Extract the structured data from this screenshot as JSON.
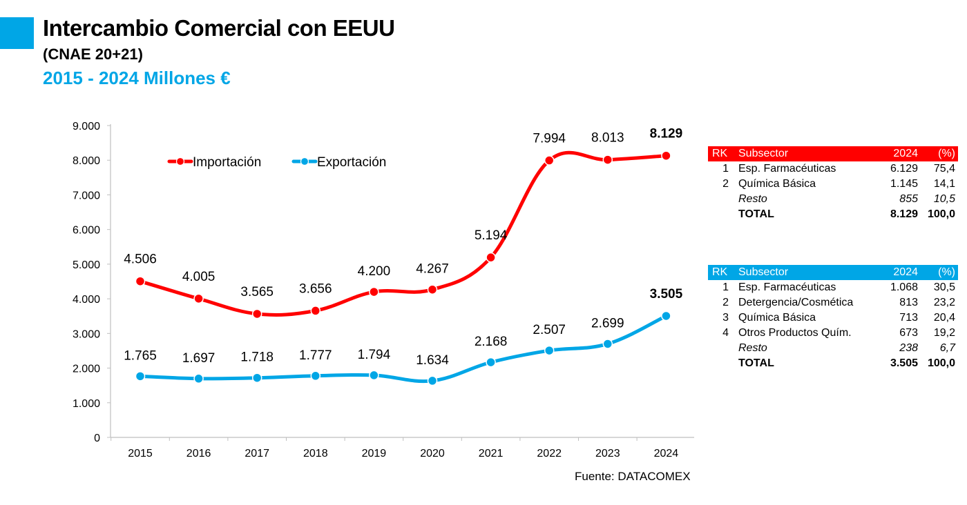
{
  "header": {
    "title": "Intercambio Comercial con EEUU",
    "subtitle": "(CNAE 20+21)",
    "period": "2015  - 2024 Millones €"
  },
  "source": "Fuente: DATACOMEX",
  "chart_data": {
    "type": "line",
    "categories": [
      "2015",
      "2016",
      "2017",
      "2018",
      "2019",
      "2020",
      "2021",
      "2022",
      "2023",
      "2024"
    ],
    "ylim": [
      0,
      9000
    ],
    "yticks": [
      0,
      1000,
      2000,
      3000,
      4000,
      5000,
      6000,
      7000,
      8000,
      9000
    ],
    "ytick_labels": [
      "0",
      "1.000",
      "2.000",
      "3.000",
      "4.000",
      "5.000",
      "6.000",
      "7.000",
      "8.000",
      "9.000"
    ],
    "legend_position": "top-left",
    "grid": false,
    "series": [
      {
        "name": "Importación",
        "color": "#ff0000",
        "values": [
          4506,
          4005,
          3565,
          3656,
          4200,
          4267,
          5194,
          7994,
          8013,
          8129
        ],
        "labels": [
          "4.506",
          "4.005",
          "3.565",
          "3.656",
          "4.200",
          "4.267",
          "5.194",
          "7.994",
          "8.013",
          "8.129"
        ]
      },
      {
        "name": "Exportación",
        "color": "#00a6e6",
        "values": [
          1765,
          1697,
          1718,
          1777,
          1794,
          1634,
          2168,
          2507,
          2699,
          3505
        ],
        "labels": [
          "1.765",
          "1.697",
          "1.718",
          "1.777",
          "1.794",
          "1.634",
          "2.168",
          "2.507",
          "2.699",
          "3.505"
        ]
      }
    ]
  },
  "tables": [
    {
      "color": "#ff0000",
      "headers": [
        "RK",
        "Subsector",
        "2024",
        "(%)"
      ],
      "rows": [
        {
          "rk": "1",
          "name": "Esp. Farmacéuticas",
          "value": "6.129",
          "pct": "75,4",
          "style": ""
        },
        {
          "rk": "2",
          "name": "Química Básica",
          "value": "1.145",
          "pct": "14,1",
          "style": ""
        },
        {
          "rk": "",
          "name": "Resto",
          "value": "855",
          "pct": "10,5",
          "style": "italic"
        },
        {
          "rk": "",
          "name": "TOTAL",
          "value": "8.129",
          "pct": "100,0",
          "style": "bold"
        }
      ]
    },
    {
      "color": "#00a6e6",
      "headers": [
        "RK",
        "Subsector",
        "2024",
        "(%)"
      ],
      "rows": [
        {
          "rk": "1",
          "name": "Esp. Farmacéuticas",
          "value": "1.068",
          "pct": "30,5",
          "style": ""
        },
        {
          "rk": "2",
          "name": "Detergencia/Cosmética",
          "value": "813",
          "pct": "23,2",
          "style": ""
        },
        {
          "rk": "3",
          "name": "Química Básica",
          "value": "713",
          "pct": "20,4",
          "style": ""
        },
        {
          "rk": "4",
          "name": "Otros Productos Quím.",
          "value": "673",
          "pct": "19,2",
          "style": ""
        },
        {
          "rk": "",
          "name": "Resto",
          "value": "238",
          "pct": "6,7",
          "style": "italic"
        },
        {
          "rk": "",
          "name": "TOTAL",
          "value": "3.505",
          "pct": "100,0",
          "style": "bold"
        }
      ]
    }
  ]
}
